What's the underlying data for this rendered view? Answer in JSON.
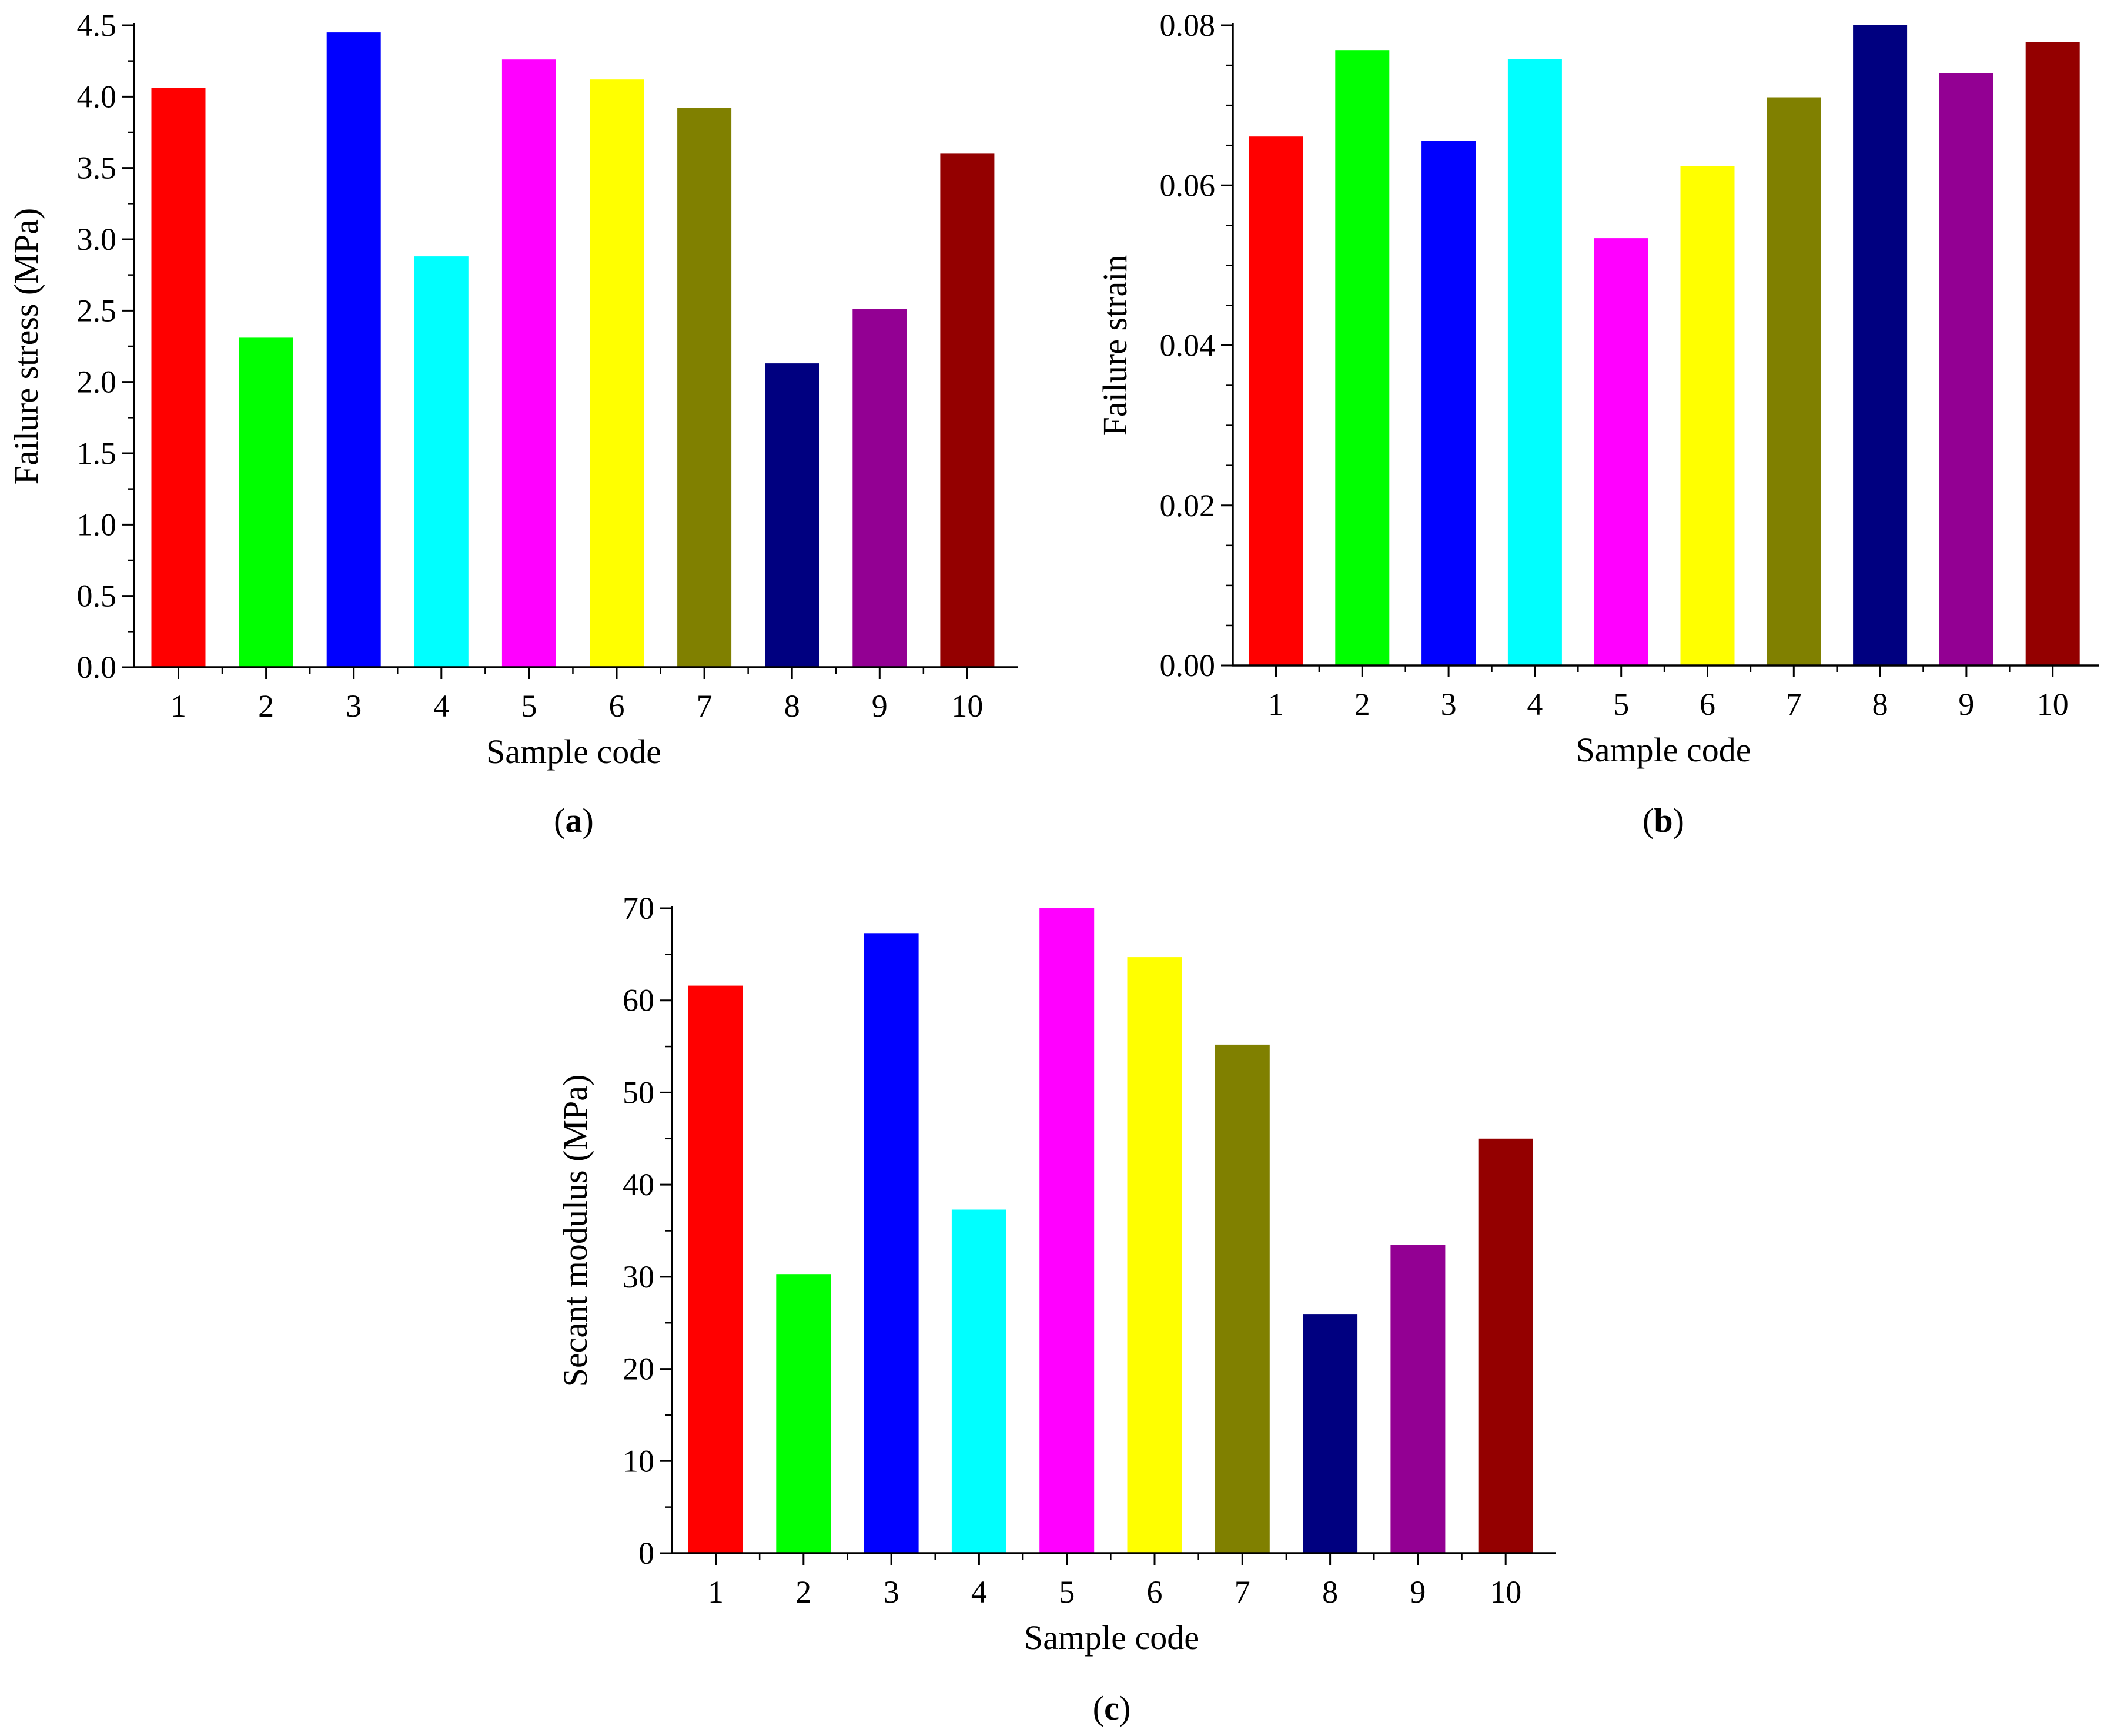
{
  "chart_data": [
    {
      "type": "bar",
      "panel_label": "a",
      "title": "",
      "xlabel": "Sample code",
      "ylabel": "Failure stress (MPa)",
      "categories": [
        "1",
        "2",
        "3",
        "4",
        "5",
        "6",
        "7",
        "8",
        "9",
        "10"
      ],
      "values": [
        4.06,
        2.31,
        4.45,
        2.88,
        4.26,
        4.12,
        3.92,
        2.13,
        2.51,
        3.6
      ],
      "colors": [
        "#ff0000",
        "#00ff00",
        "#0000ff",
        "#00ffff",
        "#ff00ff",
        "#ffff00",
        "#808000",
        "#000080",
        "#930093",
        "#940000"
      ],
      "ylim": [
        0,
        4.5
      ],
      "yticks": [
        "0.0",
        "0.5",
        "1.0",
        "1.5",
        "2.0",
        "2.5",
        "3.0",
        "3.5",
        "4.0",
        "4.5"
      ],
      "grid": false
    },
    {
      "type": "bar",
      "panel_label": "b",
      "title": "",
      "xlabel": "Sample code",
      "ylabel": "Failure strain",
      "categories": [
        "1",
        "2",
        "3",
        "4",
        "5",
        "6",
        "7",
        "8",
        "9",
        "10"
      ],
      "values": [
        0.0661,
        0.0769,
        0.0656,
        0.0758,
        0.0534,
        0.0624,
        0.071,
        0.08,
        0.074,
        0.0779
      ],
      "colors": [
        "#ff0000",
        "#00ff00",
        "#0000ff",
        "#00ffff",
        "#ff00ff",
        "#ffff00",
        "#808000",
        "#000080",
        "#930093",
        "#940000"
      ],
      "ylim": [
        0,
        0.08
      ],
      "yticks": [
        "0.00",
        "0.02",
        "0.04",
        "0.06",
        "0.08"
      ],
      "grid": false
    },
    {
      "type": "bar",
      "panel_label": "c",
      "title": "",
      "xlabel": "Sample code",
      "ylabel": "Secant modulus (MPa)",
      "categories": [
        "1",
        "2",
        "3",
        "4",
        "5",
        "6",
        "7",
        "8",
        "9",
        "10"
      ],
      "values": [
        61.6,
        30.3,
        67.3,
        37.3,
        70.0,
        64.7,
        55.2,
        25.9,
        33.5,
        45.0
      ],
      "colors": [
        "#ff0000",
        "#00ff00",
        "#0000ff",
        "#00ffff",
        "#ff00ff",
        "#ffff00",
        "#808000",
        "#000080",
        "#930093",
        "#940000"
      ],
      "ylim": [
        0,
        70
      ],
      "yticks": [
        "0",
        "10",
        "20",
        "30",
        "40",
        "50",
        "60",
        "70"
      ],
      "grid": false
    }
  ]
}
